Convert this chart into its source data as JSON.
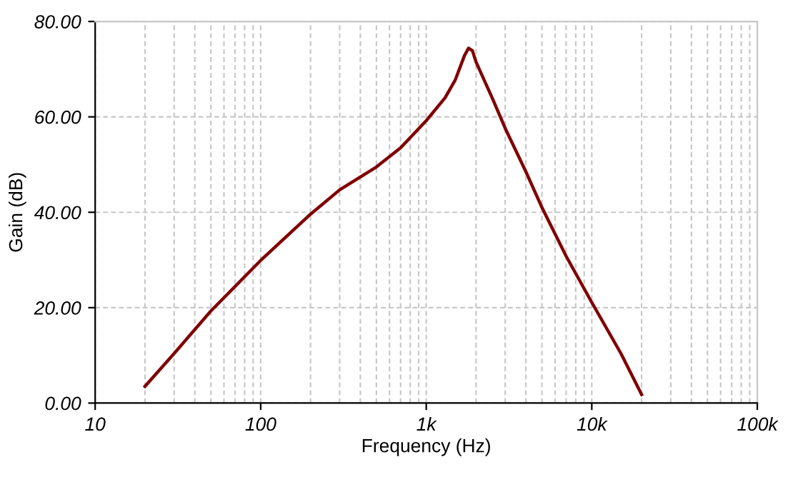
{
  "chart_data": {
    "type": "line",
    "xlabel": "Frequency (Hz)",
    "ylabel": "Gain (dB)",
    "log": "x",
    "x": [
      20,
      30,
      50,
      100,
      200,
      300,
      500,
      700,
      1000,
      1300,
      1500,
      1700,
      1800,
      1900,
      2000,
      2500,
      3000,
      4000,
      5000,
      7000,
      10000,
      15000,
      20000
    ],
    "series": [
      {
        "color": "#800000",
        "values": [
          3.5,
          10.4,
          19.3,
          29.9,
          39.6,
          44.7,
          49.5,
          53.5,
          59.2,
          64,
          67.8,
          72.8,
          74.4,
          73.9,
          71.5,
          64,
          57.6,
          48.5,
          41,
          30.8,
          21.1,
          10.4,
          1.8
        ]
      }
    ],
    "xlim": [
      10,
      100000
    ],
    "ylim": [
      0,
      80
    ],
    "xticks": [
      {
        "value": 10,
        "label": "10"
      },
      {
        "value": 100,
        "label": "100"
      },
      {
        "value": 1000,
        "label": "1k"
      },
      {
        "value": 10000,
        "label": "10k"
      },
      {
        "value": 100000,
        "label": "100k"
      }
    ],
    "yticks": [
      {
        "value": 0,
        "label": "0.00"
      },
      {
        "value": 20,
        "label": "20.00"
      },
      {
        "value": 40,
        "label": "40.00"
      },
      {
        "value": 60,
        "label": "60.00"
      },
      {
        "value": 80,
        "label": "80.00"
      }
    ],
    "grid": true,
    "marker": "none",
    "line_style": "solid"
  }
}
